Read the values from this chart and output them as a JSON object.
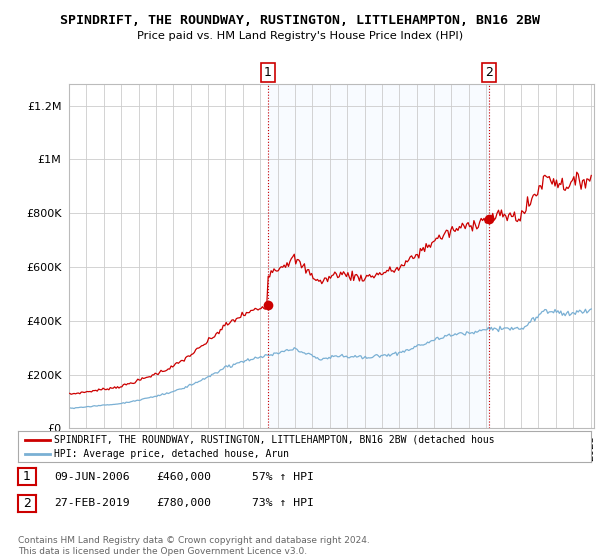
{
  "title": "SPINDRIFT, THE ROUNDWAY, RUSTINGTON, LITTLEHAMPTON, BN16 2BW",
  "subtitle": "Price paid vs. HM Land Registry's House Price Index (HPI)",
  "ytick_values": [
    0,
    200000,
    400000,
    600000,
    800000,
    1000000,
    1200000
  ],
  "ylim": [
    0,
    1280000
  ],
  "xlim_start": 1995.0,
  "xlim_end": 2025.2,
  "red_line_color": "#cc0000",
  "blue_line_color": "#7ab0d4",
  "dashed_line_color": "#cc0000",
  "shade_color": "#ddeeff",
  "point1_x": 2006.44,
  "point1_y": 460000,
  "point2_x": 2019.16,
  "point2_y": 780000,
  "legend_red": "SPINDRIFT, THE ROUNDWAY, RUSTINGTON, LITTLEHAMPTON, BN16 2BW (detached hous",
  "legend_blue": "HPI: Average price, detached house, Arun",
  "annotation1_label": "1",
  "annotation2_label": "2",
  "table_row1": [
    "1",
    "09-JUN-2006",
    "£460,000",
    "57% ↑ HPI"
  ],
  "table_row2": [
    "2",
    "27-FEB-2019",
    "£780,000",
    "73% ↑ HPI"
  ],
  "footer": "Contains HM Land Registry data © Crown copyright and database right 2024.\nThis data is licensed under the Open Government Licence v3.0.",
  "bg_color": "#ffffff",
  "plot_bg_color": "#ffffff",
  "grid_color": "#cccccc"
}
